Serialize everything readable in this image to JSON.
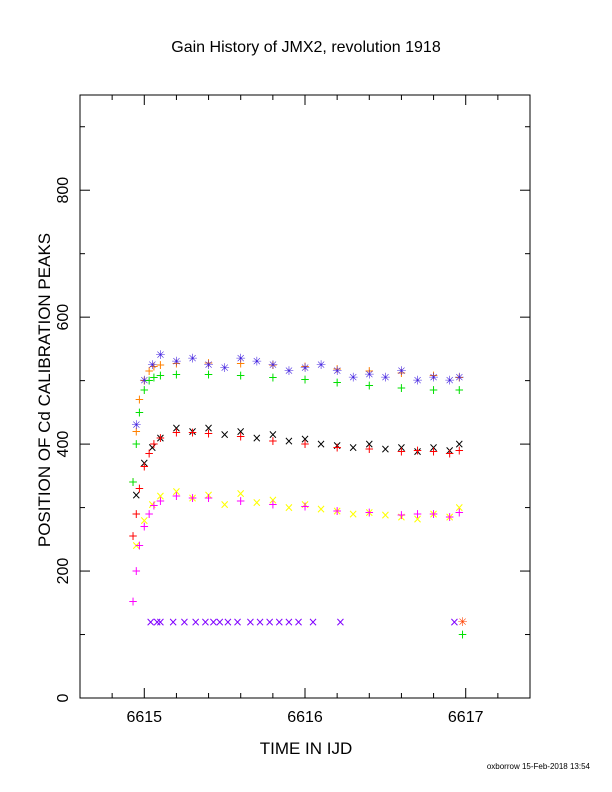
{
  "chart_data": {
    "type": "scatter",
    "title": "Gain History of JMX2, revolution 1918",
    "xlabel": "TIME IN IJD",
    "ylabel": "POSITION OF Cd CALIBRATION PEAKS",
    "xlim": [
      6614.6,
      6617.4
    ],
    "ylim": [
      0,
      950
    ],
    "xticks": [
      6615,
      6616,
      6617
    ],
    "xtick_labels": [
      "6615",
      "6616",
      "6617"
    ],
    "yticks": [
      0,
      200,
      400,
      600,
      800
    ],
    "ytick_labels": [
      "0",
      "200",
      "400",
      "600",
      "800"
    ],
    "grid": false,
    "legend": "none",
    "footer": "oxborrow 15-Feb-2018 13:54",
    "series": [
      {
        "color": "#ff8000",
        "marker": "+",
        "x": [
          6614.93,
          6614.95,
          6614.97,
          6615.0,
          6615.03,
          6615.06,
          6615.1,
          6615.2,
          6615.4,
          6615.6,
          6615.8,
          6616.0,
          6616.2,
          6616.4,
          6616.6,
          6616.8,
          6616.96
        ],
        "y": [
          340,
          420,
          470,
          500,
          515,
          522,
          525,
          527,
          528,
          527,
          525,
          522,
          518,
          515,
          512,
          508,
          505
        ]
      },
      {
        "color": "#4020e0",
        "marker": "*",
        "x": [
          6614.95,
          6615.0,
          6615.05,
          6615.1,
          6615.2,
          6615.3,
          6615.4,
          6615.5,
          6615.6,
          6615.7,
          6615.8,
          6615.9,
          6616.0,
          6616.1,
          6616.2,
          6616.3,
          6616.4,
          6616.5,
          6616.6,
          6616.7,
          6616.8,
          6616.9,
          6616.96
        ],
        "y": [
          430,
          500,
          525,
          540,
          530,
          535,
          525,
          520,
          535,
          530,
          525,
          515,
          520,
          525,
          515,
          505,
          510,
          505,
          515,
          500,
          505,
          500,
          505
        ]
      },
      {
        "color": "#00e000",
        "marker": "+",
        "x": [
          6614.93,
          6614.95,
          6614.97,
          6615.0,
          6615.03,
          6615.06,
          6615.1,
          6615.2,
          6615.4,
          6615.6,
          6615.8,
          6616.0,
          6616.2,
          6616.4,
          6616.6,
          6616.8,
          6616.96
        ],
        "y": [
          340,
          400,
          450,
          485,
          500,
          505,
          508,
          510,
          510,
          508,
          505,
          502,
          497,
          492,
          488,
          485,
          485
        ]
      },
      {
        "color": "#000000",
        "marker": "x",
        "x": [
          6614.95,
          6615.0,
          6615.05,
          6615.1,
          6615.2,
          6615.3,
          6615.4,
          6615.5,
          6615.6,
          6615.7,
          6615.8,
          6615.9,
          6616.0,
          6616.1,
          6616.2,
          6616.3,
          6616.4,
          6616.5,
          6616.6,
          6616.7,
          6616.8,
          6616.9,
          6616.96
        ],
        "y": [
          320,
          370,
          395,
          410,
          425,
          420,
          425,
          415,
          420,
          410,
          415,
          405,
          408,
          400,
          398,
          395,
          400,
          392,
          395,
          388,
          395,
          390,
          400
        ]
      },
      {
        "color": "#ff0000",
        "marker": "+",
        "x": [
          6614.93,
          6614.95,
          6614.97,
          6615.0,
          6615.03,
          6615.06,
          6615.1,
          6615.2,
          6615.3,
          6615.4,
          6615.6,
          6615.8,
          6616.0,
          6616.2,
          6616.4,
          6616.6,
          6616.7,
          6616.8,
          6616.9,
          6616.96
        ],
        "y": [
          255,
          290,
          330,
          365,
          385,
          400,
          410,
          418,
          418,
          417,
          412,
          405,
          400,
          395,
          392,
          388,
          390,
          388,
          385,
          390
        ]
      },
      {
        "color": "#ffff00",
        "marker": "x",
        "x": [
          6614.95,
          6615.0,
          6615.05,
          6615.1,
          6615.2,
          6615.3,
          6615.4,
          6615.5,
          6615.6,
          6615.7,
          6615.8,
          6615.9,
          6616.0,
          6616.1,
          6616.2,
          6616.3,
          6616.4,
          6616.5,
          6616.6,
          6616.7,
          6616.8,
          6616.9,
          6616.96
        ],
        "y": [
          240,
          280,
          305,
          318,
          325,
          315,
          320,
          305,
          322,
          308,
          312,
          300,
          305,
          298,
          295,
          290,
          292,
          288,
          285,
          282,
          290,
          285,
          300
        ]
      },
      {
        "color": "#ff00ff",
        "marker": "+",
        "x": [
          6614.93,
          6614.95,
          6614.97,
          6615.0,
          6615.03,
          6615.06,
          6615.1,
          6615.2,
          6615.3,
          6615.4,
          6615.6,
          6615.8,
          6616.0,
          6616.2,
          6616.4,
          6616.6,
          6616.7,
          6616.8,
          6616.9,
          6616.96
        ],
        "y": [
          152,
          200,
          240,
          270,
          290,
          303,
          310,
          318,
          315,
          315,
          310,
          305,
          302,
          295,
          292,
          288,
          290,
          290,
          285,
          292
        ]
      },
      {
        "color": "#8000ff",
        "marker": "x",
        "x": [
          6615.04,
          6615.08,
          6615.1,
          6615.18,
          6615.25,
          6615.32,
          6615.38,
          6615.43,
          6615.47,
          6615.52,
          6615.58,
          6615.66,
          6615.72,
          6615.78,
          6615.84,
          6615.9,
          6615.96,
          6616.05,
          6616.22,
          6616.93
        ],
        "y": [
          120,
          120,
          120,
          120,
          120,
          120,
          120,
          120,
          120,
          120,
          120,
          120,
          120,
          120,
          120,
          120,
          120,
          120,
          120,
          120
        ]
      },
      {
        "color": "#ff4000",
        "marker": "*",
        "x": [
          6616.98
        ],
        "y": [
          120
        ]
      },
      {
        "color": "#00e000",
        "marker": "+",
        "x": [
          6616.98
        ],
        "y": [
          100
        ]
      }
    ]
  }
}
